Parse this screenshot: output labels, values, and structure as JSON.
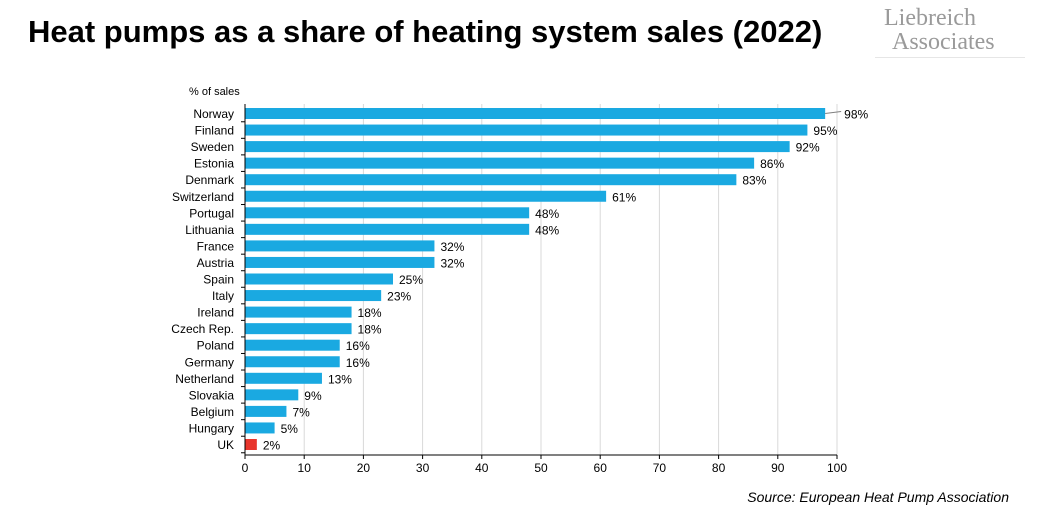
{
  "title": "Heat pumps as a share of heating system sales (2022)",
  "logo": {
    "line1": "Liebreich",
    "line2": "Associates"
  },
  "source": "Source: European Heat Pump Association",
  "chart_data": {
    "type": "bar",
    "orientation": "horizontal",
    "ylabel": "% of sales",
    "xlim": [
      0,
      100
    ],
    "xticks": [
      0,
      10,
      20,
      30,
      40,
      50,
      60,
      70,
      80,
      90,
      100
    ],
    "grid": "vertical",
    "categories": [
      "Norway",
      "Finland",
      "Sweden",
      "Estonia",
      "Denmark",
      "Switzerland",
      "Portugal",
      "Lithuania",
      "France",
      "Austria",
      "Spain",
      "Italy",
      "Ireland",
      "Czech Rep.",
      "Poland",
      "Germany",
      "Netherland",
      "Slovakia",
      "Belgium",
      "Hungary",
      "UK"
    ],
    "values": [
      98,
      95,
      92,
      86,
      83,
      61,
      48,
      48,
      32,
      32,
      25,
      23,
      18,
      18,
      16,
      16,
      13,
      9,
      7,
      5,
      2
    ],
    "data_labels": [
      "98%",
      "95%",
      "92%",
      "86%",
      "83%",
      "61%",
      "48%",
      "48%",
      "32%",
      "32%",
      "25%",
      "23%",
      "18%",
      "18%",
      "16%",
      "16%",
      "13%",
      "9%",
      "7%",
      "5%",
      "2%"
    ],
    "colors": {
      "default": "#1aa9e1",
      "highlight": "#e8352c",
      "grid": "#d9d9d9",
      "axis": "#000000"
    },
    "highlight_category": "UK"
  }
}
